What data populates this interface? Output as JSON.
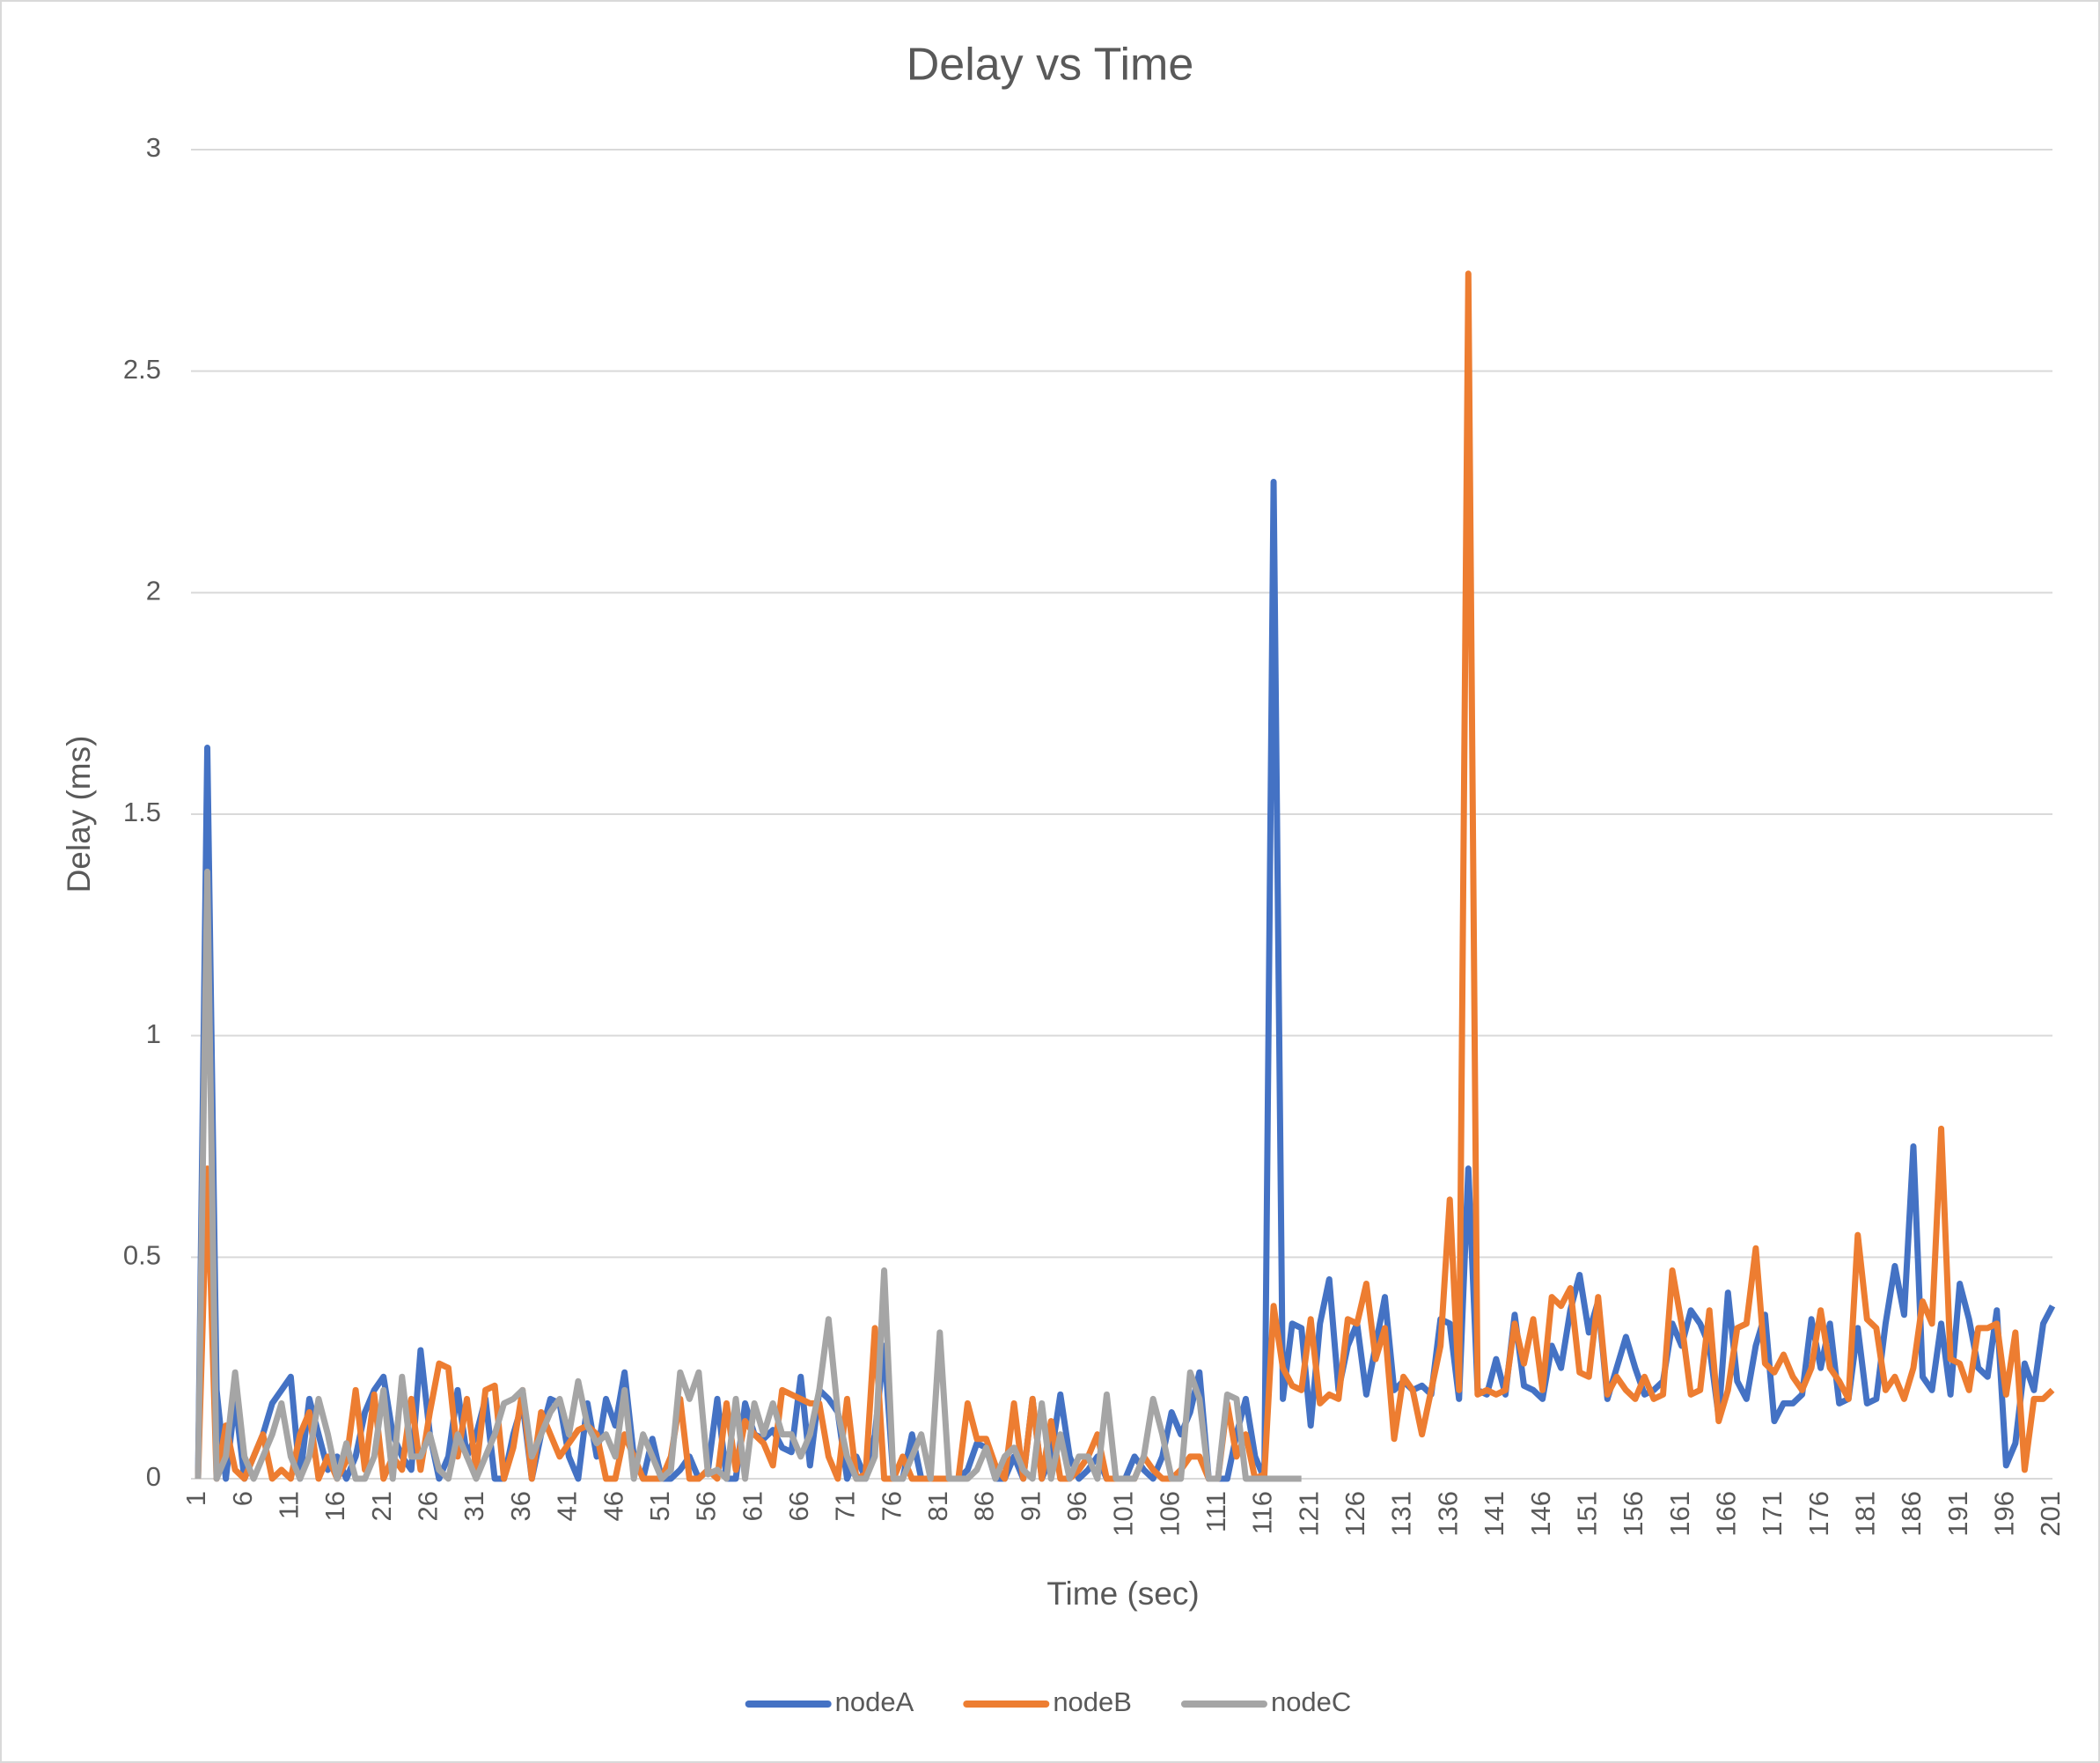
{
  "chart_data": {
    "type": "line",
    "title": "Delay vs Time",
    "xlabel": "Time (sec)",
    "ylabel": "Delay (ms)",
    "categories": [
      1,
      null,
      null,
      null,
      null,
      6,
      null,
      null,
      null,
      null,
      11,
      null,
      null,
      null,
      null,
      16,
      null,
      null,
      null,
      null,
      21,
      null,
      null,
      null,
      null,
      26,
      null,
      null,
      null,
      null,
      31,
      null,
      null,
      null,
      null,
      36,
      null,
      null,
      null,
      null,
      41,
      null,
      null,
      null,
      null,
      46,
      null,
      null,
      null,
      null,
      51,
      null,
      null,
      null,
      null,
      56,
      null,
      null,
      null,
      null,
      61,
      null,
      null,
      null,
      null,
      66,
      null,
      null,
      null,
      null,
      71,
      null,
      null,
      null,
      null,
      76,
      null,
      null,
      null,
      null,
      81,
      null,
      null,
      null,
      null,
      86,
      null,
      null,
      null,
      null,
      91,
      null,
      null,
      null,
      null,
      96,
      null,
      null,
      null,
      null,
      101,
      null,
      null,
      null,
      null,
      106,
      null,
      null,
      null,
      null,
      111,
      null,
      null,
      null,
      null,
      116,
      null,
      null,
      null,
      null,
      121,
      null,
      null,
      null,
      null,
      126,
      null,
      null,
      null,
      null,
      131,
      null,
      null,
      null,
      null,
      136,
      null,
      null,
      null,
      null,
      141,
      null,
      null,
      null,
      null,
      146,
      null,
      null,
      null,
      null,
      151,
      null,
      null,
      null,
      null,
      156,
      null,
      null,
      null,
      null,
      161,
      null,
      null,
      null,
      null,
      166,
      null,
      null,
      null,
      null,
      171,
      null,
      null,
      null,
      null,
      176,
      null,
      null,
      null,
      null,
      181,
      null,
      null,
      null,
      null,
      186,
      null,
      null,
      null,
      null,
      191,
      null,
      null,
      null,
      null,
      196,
      null,
      null,
      null,
      null,
      201
    ],
    "series": [
      {
        "name": "nodeA",
        "color": "#4472c4",
        "values": [
          0,
          1.65,
          0.2,
          0,
          0.18,
          0,
          0.05,
          0.1,
          0.17,
          0.2,
          0.23,
          0,
          0.18,
          0.1,
          0.02,
          0.05,
          0,
          0.05,
          0.15,
          0.2,
          0.23,
          0.1,
          0.05,
          0.02,
          0.29,
          0.1,
          0,
          0.05,
          0.2,
          0.05,
          0.1,
          0.18,
          0,
          0,
          0.1,
          0.17,
          0,
          0.1,
          0.18,
          0.17,
          0.05,
          0,
          0.17,
          0.05,
          0.18,
          0.12,
          0.24,
          0.05,
          0,
          0.09,
          0,
          0,
          0.02,
          0.05,
          0,
          0.02,
          0.18,
          0,
          0,
          0.17,
          0.1,
          0.09,
          0.11,
          0.07,
          0.06,
          0.23,
          0.03,
          0.2,
          0.18,
          0.15,
          0,
          0.05,
          0,
          0.1,
          0.3,
          0,
          0,
          0.1,
          0,
          0,
          0,
          0,
          0,
          0.02,
          0.08,
          0.07,
          0,
          0,
          0.05,
          0,
          0.18,
          0,
          0.05,
          0.19,
          0.05,
          0,
          0.02,
          0.05,
          0,
          0,
          0,
          0.05,
          0.02,
          0,
          0.05,
          0.15,
          0.1,
          0.15,
          0.24,
          0,
          0,
          0,
          0.1,
          0.18,
          0.05,
          0,
          2.25,
          0.18,
          0.35,
          0.34,
          0.12,
          0.35,
          0.45,
          0.2,
          0.3,
          0.35,
          0.19,
          0.3,
          0.41,
          0.2,
          0.22,
          0.2,
          0.21,
          0.19,
          0.36,
          0.35,
          0.18,
          0.7,
          0.2,
          0.19,
          0.27,
          0.19,
          0.37,
          0.21,
          0.2,
          0.18,
          0.3,
          0.25,
          0.38,
          0.46,
          0.33,
          0.4,
          0.18,
          0.25,
          0.32,
          0.25,
          0.19,
          0.2,
          0.22,
          0.35,
          0.3,
          0.38,
          0.35,
          0.3,
          0.14,
          0.42,
          0.22,
          0.18,
          0.3,
          0.37,
          0.13,
          0.17,
          0.17,
          0.19,
          0.36,
          0.25,
          0.35,
          0.17,
          0.18,
          0.34,
          0.17,
          0.18,
          0.35,
          0.48,
          0.37,
          0.75,
          0.23,
          0.2,
          0.35,
          0.19,
          0.44,
          0.36,
          0.25,
          0.23,
          0.38,
          0.03,
          0.08,
          0.26,
          0.2,
          0.35,
          0.39
        ]
      },
      {
        "name": "nodeB",
        "color": "#ed7d31",
        "values": [
          0,
          0.7,
          0,
          0.12,
          0.02,
          0,
          0.05,
          0.1,
          0,
          0.02,
          0,
          0.1,
          0.15,
          0,
          0.05,
          0,
          0.04,
          0.2,
          0.02,
          0.19,
          0,
          0.05,
          0.02,
          0.18,
          0.02,
          0.15,
          0.26,
          0.25,
          0.05,
          0.18,
          0.02,
          0.2,
          0.21,
          0,
          0.07,
          0.2,
          0,
          0.15,
          0.1,
          0.05,
          0.08,
          0.11,
          0.12,
          0.1,
          0,
          0,
          0.1,
          0.05,
          0,
          0,
          0,
          0.05,
          0.18,
          0,
          0,
          0.02,
          0,
          0.17,
          0.02,
          0.13,
          0.1,
          0.08,
          0.03,
          0.2,
          0.19,
          0.18,
          0.17,
          0.17,
          0.05,
          0,
          0.18,
          0,
          0.01,
          0.34,
          0,
          0,
          0.05,
          0,
          0,
          0,
          0,
          0,
          0,
          0.17,
          0.09,
          0.09,
          0.03,
          0,
          0.17,
          0,
          0.18,
          0,
          0.13,
          0,
          0,
          0.02,
          0.05,
          0.1,
          0,
          0,
          0,
          0,
          0.05,
          0.02,
          0,
          0,
          0.02,
          0.05,
          0.05,
          0,
          0,
          0.17,
          0.05,
          0.1,
          0,
          0.01,
          0.39,
          0.25,
          0.21,
          0.2,
          0.36,
          0.17,
          0.19,
          0.18,
          0.36,
          0.35,
          0.44,
          0.27,
          0.34,
          0.09,
          0.23,
          0.2,
          0.1,
          0.2,
          0.3,
          0.63,
          0.2,
          2.72,
          0.19,
          0.2,
          0.19,
          0.2,
          0.35,
          0.26,
          0.36,
          0.2,
          0.41,
          0.39,
          0.43,
          0.24,
          0.23,
          0.41,
          0.19,
          0.23,
          0.2,
          0.18,
          0.23,
          0.18,
          0.19,
          0.47,
          0.35,
          0.19,
          0.2,
          0.38,
          0.13,
          0.2,
          0.34,
          0.35,
          0.52,
          0.26,
          0.24,
          0.28,
          0.23,
          0.2,
          0.25,
          0.38,
          0.25,
          0.22,
          0.18,
          0.55,
          0.36,
          0.34,
          0.2,
          0.23,
          0.18,
          0.25,
          0.4,
          0.35,
          0.79,
          0.27,
          0.26,
          0.2,
          0.34,
          0.34,
          0.35,
          0.19,
          0.33,
          0.02,
          0.18,
          0.18,
          0.2
        ]
      },
      {
        "name": "nodeC",
        "color": "#a5a5a5",
        "values": [
          0,
          1.37,
          0,
          0.05,
          0.24,
          0.05,
          0,
          0.05,
          0.1,
          0.17,
          0.05,
          0,
          0.05,
          0.18,
          0.1,
          0,
          0.08,
          0,
          0,
          0.05,
          0.2,
          0,
          0.23,
          0.05,
          0.05,
          0.1,
          0.02,
          0,
          0.1,
          0.05,
          0,
          0.05,
          0.1,
          0.17,
          0.18,
          0.2,
          0.05,
          0.1,
          0.15,
          0.18,
          0.1,
          0.22,
          0.12,
          0.08,
          0.1,
          0.05,
          0.2,
          0,
          0.1,
          0.05,
          0,
          0.02,
          0.24,
          0.18,
          0.24,
          0.01,
          0.02,
          0,
          0.18,
          0,
          0.17,
          0.1,
          0.17,
          0.1,
          0.1,
          0.05,
          0.1,
          0.2,
          0.36,
          0.15,
          0.05,
          0,
          0,
          0.05,
          0.47,
          0,
          0,
          0.05,
          0.1,
          0,
          0.33,
          0,
          0,
          0,
          0.02,
          0.07,
          0,
          0.05,
          0.07,
          0.02,
          0,
          0.17,
          0,
          0.1,
          0,
          0.05,
          0.05,
          0,
          0.19,
          0,
          0,
          0,
          0.05,
          0.18,
          0.1,
          0,
          0,
          0.24,
          0.18,
          0,
          0,
          0.19,
          0.18,
          0,
          0,
          0,
          0,
          0,
          0,
          0,
          null,
          null,
          null,
          null,
          null,
          null,
          null,
          null,
          null,
          null,
          null,
          null,
          null,
          null,
          null,
          null,
          null,
          null,
          null,
          null,
          null,
          null,
          null,
          null,
          null,
          null,
          null,
          null,
          null,
          null,
          null,
          null,
          null,
          null,
          null,
          null,
          null,
          null,
          null,
          null,
          null,
          null,
          null,
          null,
          null,
          null,
          null,
          null,
          null,
          null,
          null,
          null,
          null,
          null,
          null,
          null,
          null,
          null,
          null,
          null,
          null,
          null,
          null,
          null,
          null,
          null,
          null,
          null,
          null,
          null,
          null,
          null,
          null,
          null,
          null,
          null,
          null,
          null,
          null,
          null,
          null
        ]
      }
    ],
    "ylim": [
      0,
      3
    ],
    "yticks": [
      0,
      0.5,
      1,
      1.5,
      2,
      2.5,
      3
    ],
    "grid": true,
    "legend": "bottom"
  }
}
